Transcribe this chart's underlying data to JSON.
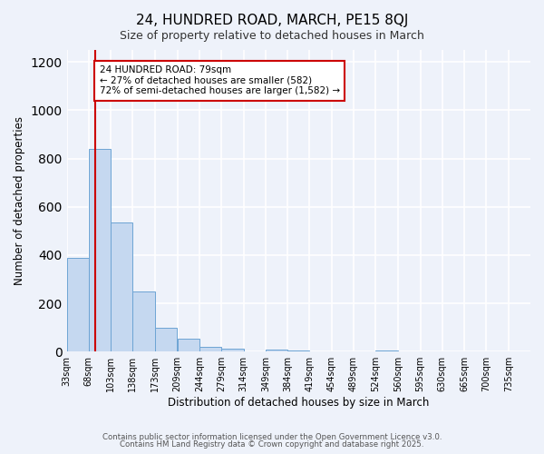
{
  "title": "24, HUNDRED ROAD, MARCH, PE15 8QJ",
  "subtitle": "Size of property relative to detached houses in March",
  "bar_heights": [
    390,
    840,
    535,
    248,
    98,
    52,
    18,
    12,
    0,
    8,
    5,
    0,
    0,
    0,
    5,
    0,
    0,
    0,
    0,
    0
  ],
  "xlabel": "Distribution of detached houses by size in March",
  "ylabel": "Number of detached properties",
  "ylim": [
    0,
    1250
  ],
  "yticks": [
    0,
    200,
    400,
    600,
    800,
    1000,
    1200
  ],
  "bar_color": "#c5d8f0",
  "bar_edge_color": "#6da4d4",
  "vline_x": 79,
  "vline_color": "#cc0000",
  "annotation_title": "24 HUNDRED ROAD: 79sqm",
  "annotation_line1": "← 27% of detached houses are smaller (582)",
  "annotation_line2": "72% of semi-detached houses are larger (1,582) →",
  "annotation_box_color": "#ffffff",
  "annotation_box_edge": "#cc0000",
  "footer1": "Contains HM Land Registry data © Crown copyright and database right 2025.",
  "footer2": "Contains public sector information licensed under the Open Government Licence v3.0.",
  "background_color": "#eef2fa",
  "grid_color": "#ffffff",
  "bin_edges": [
    33,
    68,
    103,
    138,
    173,
    209,
    244,
    279,
    314,
    349,
    384,
    419,
    454,
    489,
    524,
    560,
    595,
    630,
    665,
    700,
    735
  ],
  "xtick_labels": [
    "33sqm",
    "68sqm",
    "103sqm",
    "138sqm",
    "173sqm",
    "209sqm",
    "244sqm",
    "279sqm",
    "314sqm",
    "349sqm",
    "384sqm",
    "419sqm",
    "454sqm",
    "489sqm",
    "524sqm",
    "560sqm",
    "595sqm",
    "630sqm",
    "665sqm",
    "700sqm",
    "735sqm"
  ]
}
